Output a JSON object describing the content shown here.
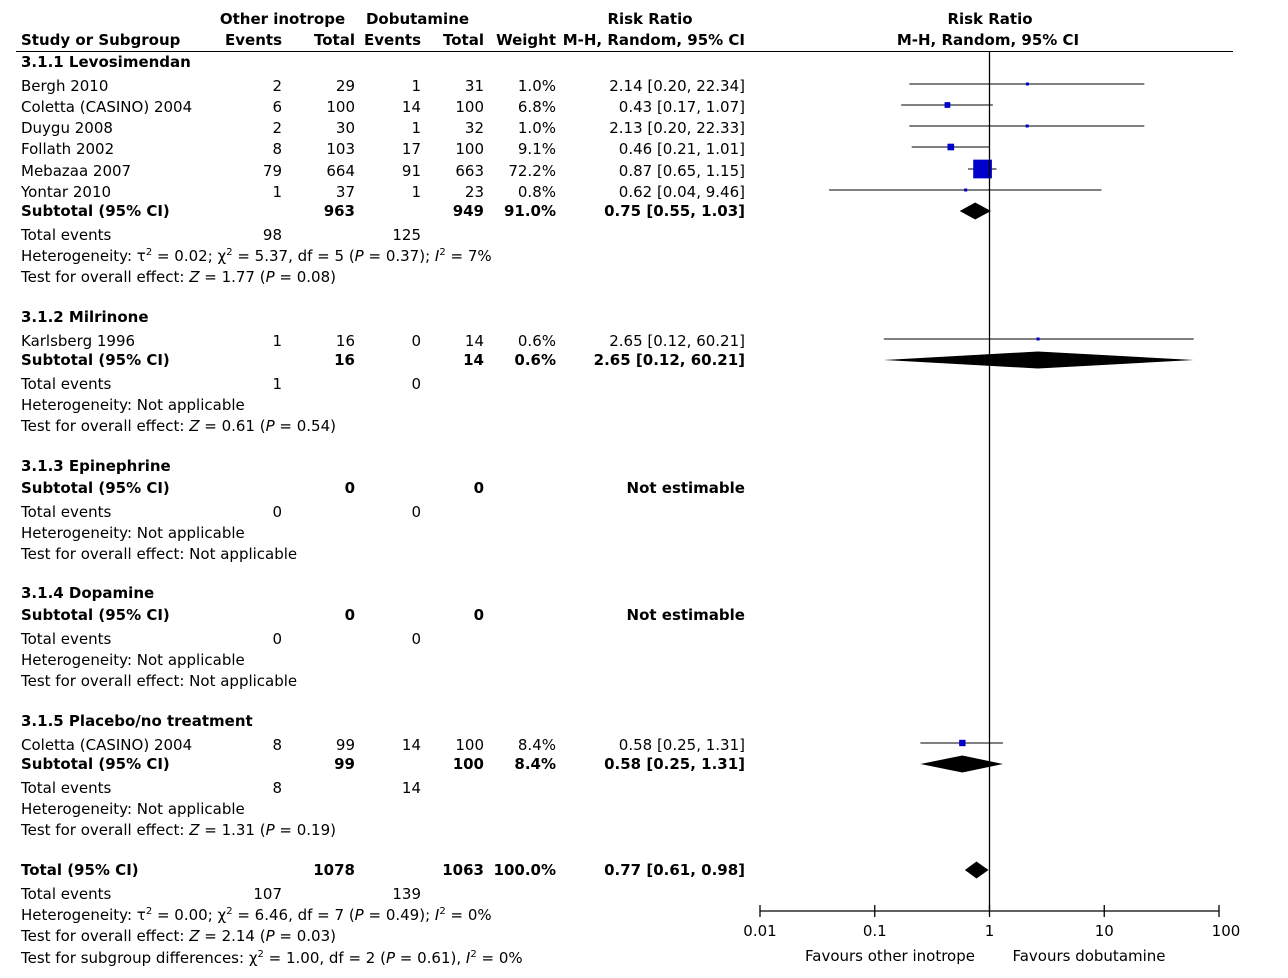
{
  "header": {
    "group1": "Other inotrope",
    "group2": "Dobutamine",
    "study_col": "Study or Subgroup",
    "events1": "Events",
    "total1": "Total",
    "events2": "Events",
    "total2": "Total",
    "weight": "Weight",
    "rr_title": "Risk Ratio",
    "rr_method": "M-H, Random, 95% CI",
    "plot_title": "Risk Ratio",
    "plot_method": "M-H, Random, 95% CI"
  },
  "subgroups": [
    {
      "title": "3.1.1 Levosimendan",
      "studies": [
        {
          "name": "Bergh 2010",
          "e1": "2",
          "t1": "29",
          "e2": "1",
          "t2": "31",
          "w": "1.0%",
          "ci": "2.14 [0.20, 22.34]"
        },
        {
          "name": "Coletta (CASINO) 2004",
          "e1": "6",
          "t1": "100",
          "e2": "14",
          "t2": "100",
          "w": "6.8%",
          "ci": "0.43 [0.17, 1.07]"
        },
        {
          "name": "Duygu 2008",
          "e1": "2",
          "t1": "30",
          "e2": "1",
          "t2": "32",
          "w": "1.0%",
          "ci": "2.13 [0.20, 22.33]"
        },
        {
          "name": "Follath 2002",
          "e1": "8",
          "t1": "103",
          "e2": "17",
          "t2": "100",
          "w": "9.1%",
          "ci": "0.46 [0.21, 1.01]"
        },
        {
          "name": "Mebazaa 2007",
          "e1": "79",
          "t1": "664",
          "e2": "91",
          "t2": "663",
          "w": "72.2%",
          "ci": "0.87 [0.65, 1.15]"
        },
        {
          "name": "Yontar 2010",
          "e1": "1",
          "t1": "37",
          "e2": "1",
          "t2": "23",
          "w": "0.8%",
          "ci": "0.62 [0.04, 9.46]"
        }
      ],
      "subtotal": {
        "label": "Subtotal (95% CI)",
        "t1": "963",
        "t2": "949",
        "w": "91.0%",
        "ci": "0.75 [0.55, 1.03]"
      },
      "total_events": {
        "label": "Total events",
        "e1": "98",
        "e2": "125"
      },
      "heterogeneity": "Heterogeneity: τ² = 0.02; χ² = 5.37, df = 5 (P = 0.37); I² = 7%",
      "overall": "Test for overall effect: Z = 1.77 (P = 0.08)"
    },
    {
      "title": "3.1.2 Milrinone",
      "studies": [
        {
          "name": "Karlsberg 1996",
          "e1": "1",
          "t1": "16",
          "e2": "0",
          "t2": "14",
          "w": "0.6%",
          "ci": "2.65 [0.12, 60.21]"
        }
      ],
      "subtotal": {
        "label": "Subtotal (95% CI)",
        "t1": "16",
        "t2": "14",
        "w": "0.6%",
        "ci": "2.65 [0.12, 60.21]"
      },
      "total_events": {
        "label": "Total events",
        "e1": "1",
        "e2": "0"
      },
      "heterogeneity": "Heterogeneity: Not applicable",
      "overall": "Test for overall effect: Z = 0.61 (P = 0.54)"
    },
    {
      "title": "3.1.3 Epinephrine",
      "studies": [],
      "subtotal": {
        "label": "Subtotal (95% CI)",
        "t1": "0",
        "t2": "0",
        "w": "",
        "ci": "Not estimable"
      },
      "total_events": {
        "label": "Total events",
        "e1": "0",
        "e2": "0"
      },
      "heterogeneity": "Heterogeneity: Not applicable",
      "overall": "Test for overall effect: Not applicable"
    },
    {
      "title": "3.1.4 Dopamine",
      "studies": [],
      "subtotal": {
        "label": "Subtotal (95% CI)",
        "t1": "0",
        "t2": "0",
        "w": "",
        "ci": "Not estimable"
      },
      "total_events": {
        "label": "Total events",
        "e1": "0",
        "e2": "0"
      },
      "heterogeneity": "Heterogeneity: Not applicable",
      "overall": "Test for overall effect: Not applicable"
    },
    {
      "title": "3.1.5 Placebo/no treatment",
      "studies": [
        {
          "name": "Coletta (CASINO) 2004",
          "e1": "8",
          "t1": "99",
          "e2": "14",
          "t2": "100",
          "w": "8.4%",
          "ci": "0.58 [0.25, 1.31]"
        }
      ],
      "subtotal": {
        "label": "Subtotal (95% CI)",
        "t1": "99",
        "t2": "100",
        "w": "8.4%",
        "ci": "0.58 [0.25, 1.31]"
      },
      "total_events": {
        "label": "Total events",
        "e1": "8",
        "e2": "14"
      },
      "heterogeneity": "Heterogeneity: Not applicable",
      "overall": "Test for overall effect: Z = 1.31 (P = 0.19)"
    }
  ],
  "total": {
    "label": "Total (95% CI)",
    "t1": "1078",
    "t2": "1063",
    "w": "100.0%",
    "ci": "0.77 [0.61, 0.98]",
    "events_label": "Total events",
    "e1": "107",
    "e2": "139",
    "heterogeneity": "Heterogeneity: τ² = 0.00; χ² = 6.46, df = 7 (P = 0.49); I² = 0%",
    "overall": "Test for overall effect: Z = 2.14 (P = 0.03)",
    "subgroup_diff": "Test for subgroup differences: χ² = 1.00, df = 2 (P = 0.61), I² = 0%"
  },
  "axis": {
    "ticks": [
      "0.01",
      "0.1",
      "1",
      "10",
      "100"
    ],
    "tick_values": [
      0.01,
      0.1,
      1,
      10,
      100
    ],
    "left_label": "Favours other inotrope",
    "right_label": "Favours dobutamine"
  },
  "chart_data": {
    "type": "forest",
    "scale": "log",
    "xlim": [
      0.01,
      100
    ],
    "reference_line": 1,
    "study_color": "#0000cc",
    "summary_color": "#000000",
    "studies": [
      {
        "label": "Bergh 2010",
        "rr": 2.14,
        "lo": 0.2,
        "hi": 22.34,
        "weight": 1.0
      },
      {
        "label": "Coletta (CASINO) 2004",
        "rr": 0.43,
        "lo": 0.17,
        "hi": 1.07,
        "weight": 6.8
      },
      {
        "label": "Duygu 2008",
        "rr": 2.13,
        "lo": 0.2,
        "hi": 22.33,
        "weight": 1.0
      },
      {
        "label": "Follath 2002",
        "rr": 0.46,
        "lo": 0.21,
        "hi": 1.01,
        "weight": 9.1
      },
      {
        "label": "Mebazaa 2007",
        "rr": 0.87,
        "lo": 0.65,
        "hi": 1.15,
        "weight": 72.2
      },
      {
        "label": "Yontar 2010",
        "rr": 0.62,
        "lo": 0.04,
        "hi": 9.46,
        "weight": 0.8
      },
      {
        "label": "Karlsberg 1996",
        "rr": 2.65,
        "lo": 0.12,
        "hi": 60.21,
        "weight": 0.6
      },
      {
        "label": "Coletta (CASINO) 2004",
        "rr": 0.58,
        "lo": 0.25,
        "hi": 1.31,
        "weight": 8.4
      }
    ],
    "summaries": [
      {
        "label": "Subtotal (95% CI)",
        "rr": 0.75,
        "lo": 0.55,
        "hi": 1.03
      },
      {
        "label": "Subtotal (95% CI)",
        "rr": 2.65,
        "lo": 0.12,
        "hi": 60.21
      },
      {
        "label": "Subtotal (95% CI)",
        "rr": 0.58,
        "lo": 0.25,
        "hi": 1.31
      },
      {
        "label": "Total (95% CI)",
        "rr": 0.77,
        "lo": 0.61,
        "hi": 0.98
      }
    ]
  }
}
